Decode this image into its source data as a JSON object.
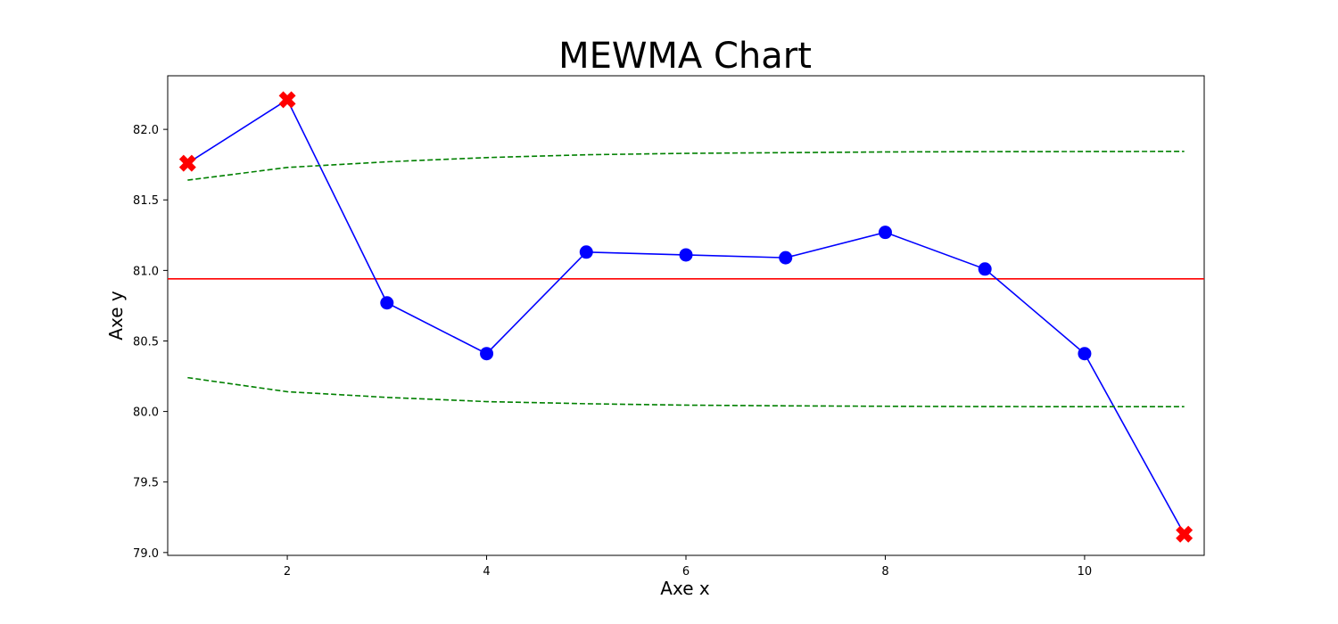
{
  "chart_data": {
    "type": "line",
    "title": "MEWMA Chart",
    "xlabel": "Axe x",
    "ylabel": "Axe y",
    "xlim": [
      0.8,
      11.2
    ],
    "ylim": [
      78.98,
      82.38
    ],
    "x_ticks": [
      2,
      4,
      6,
      8,
      10
    ],
    "y_ticks": [
      79.0,
      79.5,
      80.0,
      80.5,
      81.0,
      81.5,
      82.0
    ],
    "grid": false,
    "center_line": {
      "value": 80.94,
      "color": "#ff0000"
    },
    "series": [
      {
        "x": [
          1,
          2,
          3,
          4,
          5,
          6,
          7,
          8,
          9,
          10,
          11
        ],
        "values": [
          81.76,
          82.21,
          80.77,
          80.41,
          81.13,
          81.11,
          81.09,
          81.27,
          81.01,
          80.41,
          79.13
        ],
        "color": "#0000ff",
        "marker": "circle"
      },
      {
        "x": [
          1,
          2,
          3,
          4,
          5,
          6,
          7,
          8,
          9,
          10,
          11
        ],
        "values": [
          81.64,
          81.73,
          81.77,
          81.8,
          81.82,
          81.83,
          81.835,
          81.84,
          81.842,
          81.843,
          81.844
        ],
        "color": "#008000",
        "style": "dashed"
      },
      {
        "x": [
          1,
          2,
          3,
          4,
          5,
          6,
          7,
          8,
          9,
          10,
          11
        ],
        "values": [
          80.24,
          80.14,
          80.1,
          80.07,
          80.055,
          80.045,
          80.04,
          80.037,
          80.035,
          80.034,
          80.034
        ],
        "color": "#008000",
        "style": "dashed"
      }
    ],
    "out_of_control_points": {
      "x": [
        1,
        2,
        11
      ],
      "values": [
        81.76,
        82.21,
        79.13
      ],
      "color": "#ff0000",
      "marker": "x"
    }
  }
}
